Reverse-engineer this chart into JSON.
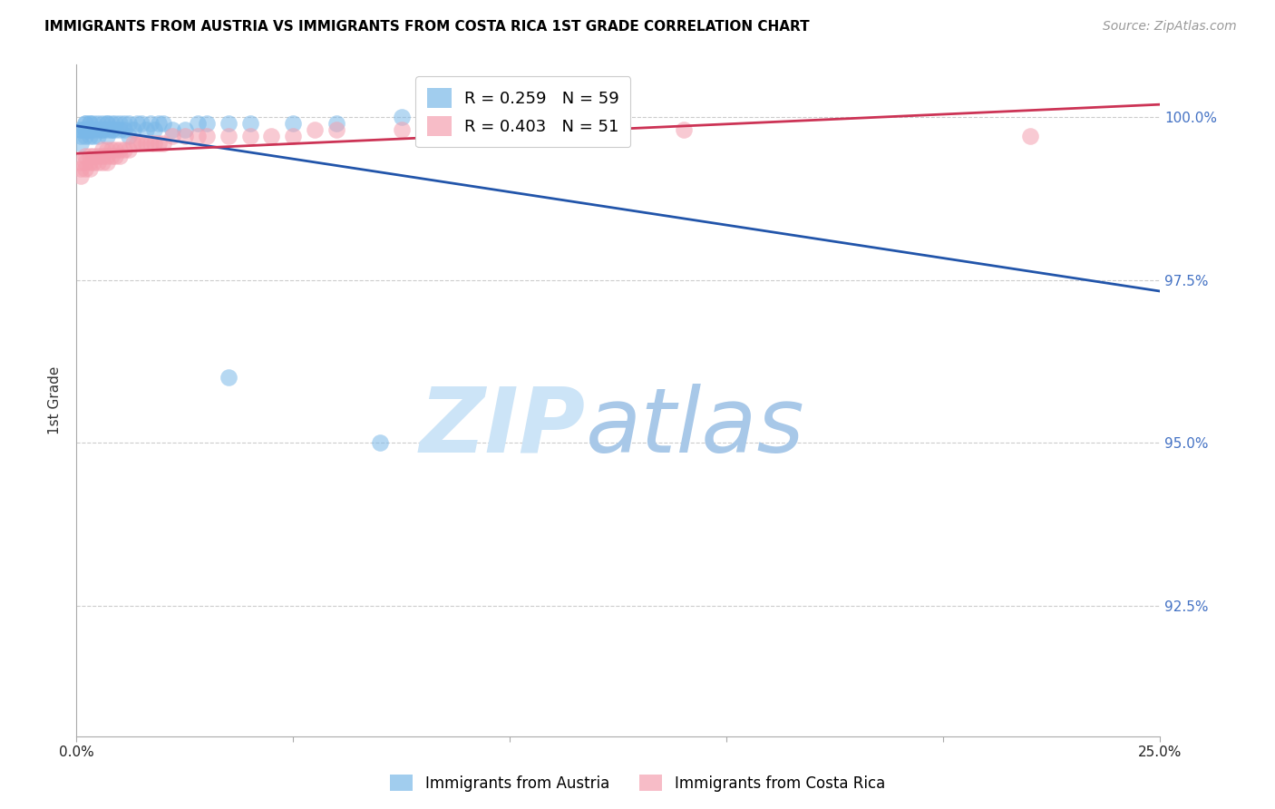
{
  "title": "IMMIGRANTS FROM AUSTRIA VS IMMIGRANTS FROM COSTA RICA 1ST GRADE CORRELATION CHART",
  "source": "Source: ZipAtlas.com",
  "ylabel": "1st Grade",
  "yticks": [
    "100.0%",
    "97.5%",
    "95.0%",
    "92.5%"
  ],
  "ytick_vals": [
    1.0,
    0.975,
    0.95,
    0.925
  ],
  "xlim": [
    0.0,
    0.25
  ],
  "ylim": [
    0.905,
    1.008
  ],
  "austria_R": 0.259,
  "austria_N": 59,
  "costarica_R": 0.403,
  "costarica_N": 51,
  "austria_color": "#7ab8e8",
  "costarica_color": "#f4a0b0",
  "austria_label": "Immigrants from Austria",
  "costarica_label": "Immigrants from Costa Rica",
  "trend_austria_color": "#2255aa",
  "trend_costarica_color": "#cc3355",
  "austria_x": [
    0.001,
    0.001,
    0.001,
    0.001,
    0.002,
    0.002,
    0.002,
    0.002,
    0.002,
    0.003,
    0.003,
    0.003,
    0.003,
    0.003,
    0.004,
    0.004,
    0.004,
    0.005,
    0.005,
    0.005,
    0.006,
    0.006,
    0.006,
    0.007,
    0.007,
    0.007,
    0.007,
    0.008,
    0.008,
    0.008,
    0.009,
    0.009,
    0.01,
    0.01,
    0.011,
    0.011,
    0.012,
    0.012,
    0.013,
    0.014,
    0.015,
    0.016,
    0.017,
    0.018,
    0.019,
    0.02,
    0.022,
    0.025,
    0.028,
    0.03,
    0.035,
    0.04,
    0.05,
    0.06,
    0.075,
    0.085,
    0.095,
    0.035,
    0.07
  ],
  "austria_y": [
    0.998,
    0.997,
    0.996,
    0.998,
    0.999,
    0.998,
    0.997,
    0.998,
    0.999,
    0.999,
    0.998,
    0.997,
    0.998,
    0.999,
    0.999,
    0.998,
    0.997,
    0.999,
    0.998,
    0.997,
    0.999,
    0.998,
    0.998,
    0.999,
    0.999,
    0.998,
    0.997,
    0.999,
    0.998,
    0.998,
    0.999,
    0.998,
    0.999,
    0.998,
    0.999,
    0.998,
    0.999,
    0.997,
    0.998,
    0.999,
    0.999,
    0.998,
    0.999,
    0.998,
    0.999,
    0.999,
    0.998,
    0.998,
    0.999,
    0.999,
    0.999,
    0.999,
    0.999,
    0.999,
    1.0,
    1.0,
    1.0,
    0.96,
    0.95
  ],
  "costarica_x": [
    0.001,
    0.001,
    0.001,
    0.002,
    0.002,
    0.002,
    0.003,
    0.003,
    0.003,
    0.004,
    0.004,
    0.005,
    0.005,
    0.006,
    0.006,
    0.006,
    0.007,
    0.007,
    0.007,
    0.008,
    0.008,
    0.009,
    0.009,
    0.01,
    0.01,
    0.011,
    0.012,
    0.013,
    0.014,
    0.015,
    0.016,
    0.017,
    0.018,
    0.019,
    0.02,
    0.022,
    0.025,
    0.028,
    0.03,
    0.035,
    0.04,
    0.045,
    0.05,
    0.06,
    0.08,
    0.1,
    0.12,
    0.14,
    0.055,
    0.075,
    0.22
  ],
  "costarica_y": [
    0.993,
    0.992,
    0.991,
    0.993,
    0.992,
    0.994,
    0.994,
    0.993,
    0.992,
    0.994,
    0.993,
    0.994,
    0.993,
    0.995,
    0.994,
    0.993,
    0.995,
    0.994,
    0.993,
    0.995,
    0.994,
    0.995,
    0.994,
    0.995,
    0.994,
    0.995,
    0.995,
    0.996,
    0.996,
    0.996,
    0.996,
    0.996,
    0.996,
    0.996,
    0.996,
    0.997,
    0.997,
    0.997,
    0.997,
    0.997,
    0.997,
    0.997,
    0.997,
    0.998,
    0.998,
    0.998,
    0.998,
    0.998,
    0.998,
    0.998,
    0.997
  ],
  "legend_austria_color": "#7ab8e8",
  "legend_costarica_color": "#f4a0b0",
  "watermark_zip_color": "#cce4f7",
  "watermark_atlas_color": "#a8c8e8"
}
